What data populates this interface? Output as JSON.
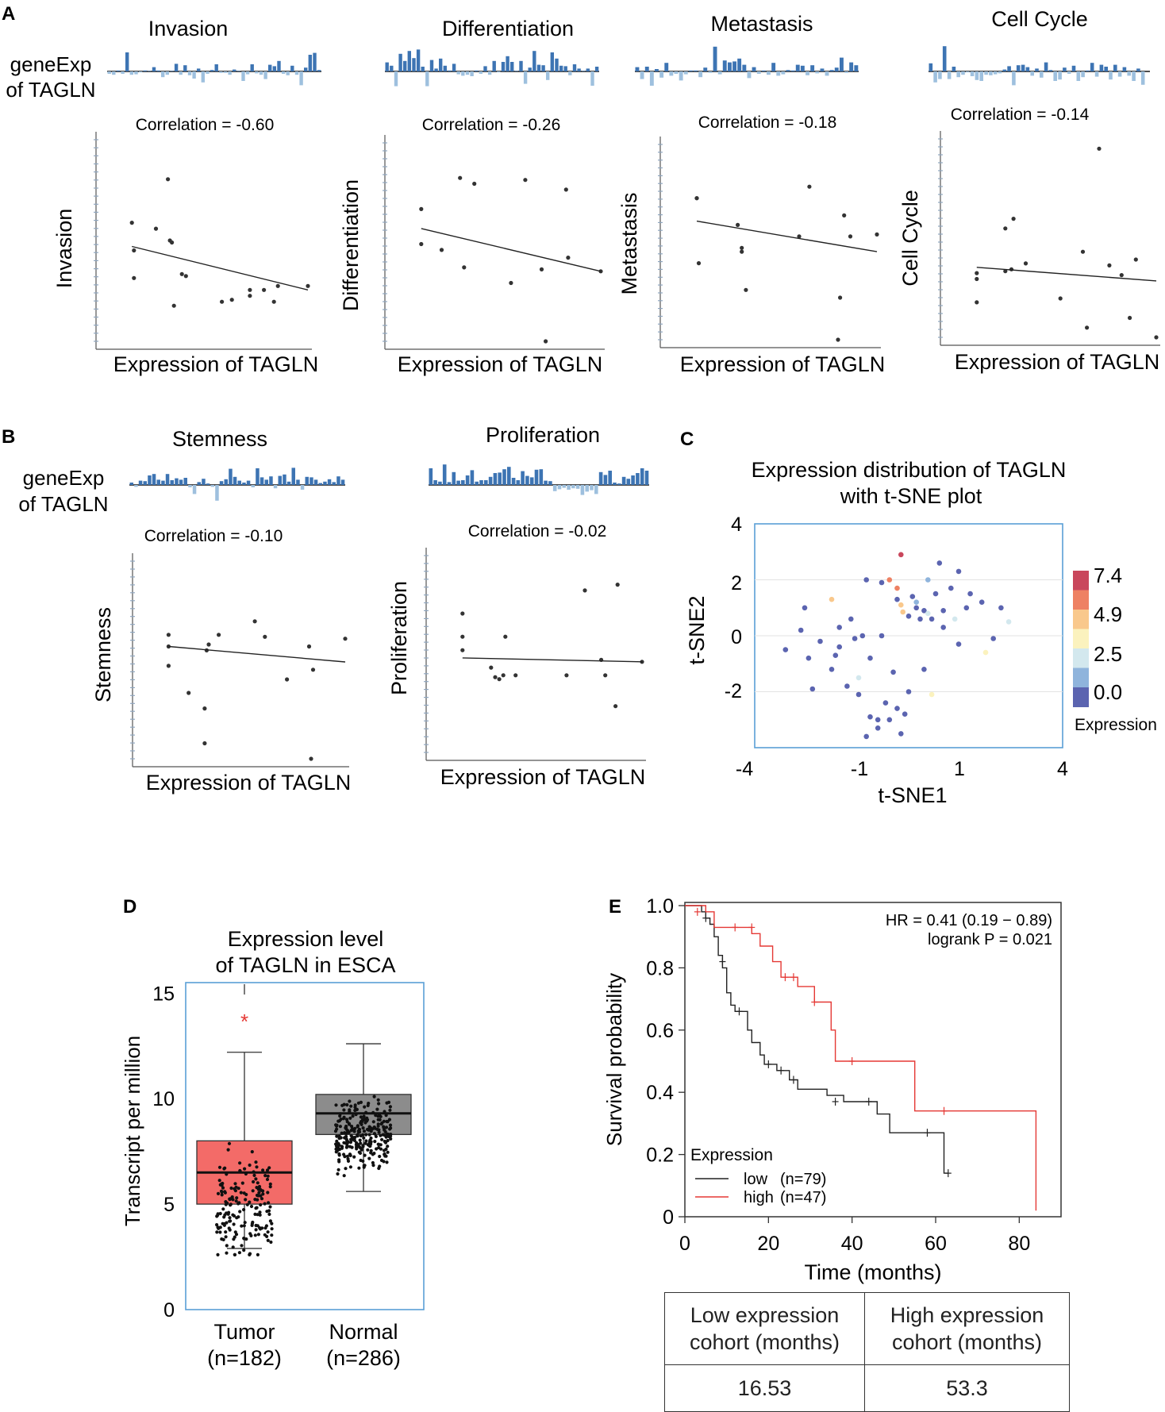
{
  "panel_labels": {
    "a": "A",
    "b": "B",
    "c": "C",
    "d": "D",
    "e": "E"
  },
  "common": {
    "gene_label_line1": "geneExp",
    "gene_label_line2": "of TAGLN",
    "xlabel": "Expression of TAGLN"
  },
  "chart_data": [
    {
      "panel": "A",
      "type": "scatter",
      "title": "Invasion",
      "ylabel": "Invasion",
      "xlabel": "Expression of TAGLN",
      "correlation": "Correlation = -0.60",
      "x": [
        0.12,
        0.13,
        0.13,
        0.24,
        0.3,
        0.31,
        0.32,
        0.33,
        0.37,
        0.39,
        0.57,
        0.62,
        0.71,
        0.71,
        0.78,
        0.83,
        0.85,
        1.0
      ],
      "y": [
        0.6,
        0.46,
        0.32,
        0.57,
        0.82,
        0.51,
        0.5,
        0.18,
        0.34,
        0.33,
        0.2,
        0.21,
        0.23,
        0.26,
        0.26,
        0.2,
        0.28,
        0.28
      ],
      "fit": [
        0.48,
        0.26
      ],
      "genebars": [
        -0.1,
        -0.14,
        0.04,
        -0.1,
        0.8,
        -0.14,
        -0.12,
        -0.04,
        0.04,
        0.02,
        0.18,
        0.04,
        -0.24,
        -0.14,
        0.02,
        0.32,
        -0.14,
        0.26,
        -0.16,
        -0.3,
        0.12,
        -0.46,
        -0.1,
        0.06,
        0.3,
        -0.06,
        -0.06,
        -0.14,
        0.08,
        0.02,
        -0.4,
        -0.12,
        0.3,
        -0.08,
        -0.14,
        -0.32,
        0.28,
        0.22,
        0.44,
        -0.1,
        -0.16,
        0.24,
        -0.14,
        -0.58,
        0.16,
        0.7,
        0.78,
        0.06
      ]
    },
    {
      "panel": "A",
      "type": "scatter",
      "title": "Differentiation",
      "ylabel": "Differentiation",
      "xlabel": "Expression of TAGLN",
      "correlation": "Correlation = -0.26",
      "x": [
        0.12,
        0.12,
        0.22,
        0.31,
        0.33,
        0.38,
        0.56,
        0.63,
        0.71,
        0.73,
        0.83,
        0.84,
        1.0
      ],
      "y": [
        0.68,
        0.5,
        0.47,
        0.84,
        0.38,
        0.81,
        0.3,
        0.83,
        0.37,
        0.0,
        0.78,
        0.43,
        0.36
      ],
      "fit": [
        0.58,
        0.36
      ],
      "genebars": [
        0.38,
        0.24,
        -0.62,
        0.74,
        0.44,
        0.86,
        0.56,
        0.92,
        0.2,
        -0.62,
        0.48,
        0.12,
        0.54,
        0.24,
        0.04,
        0.32,
        -0.12,
        -0.18,
        -0.14,
        -0.2,
        0.04,
        -0.1,
        0.22,
        -0.14,
        0.44,
        -0.04,
        0.4,
        0.64,
        0.4,
        0.02,
        0.44,
        -0.52,
        0.16,
        0.86,
        0.28,
        0.26,
        -0.36,
        0.8,
        0.54,
        0.24,
        0.22,
        -0.16,
        0.3,
        0.12,
        0.02,
        0.12,
        -0.6,
        0.2
      ]
    },
    {
      "panel": "A",
      "type": "scatter",
      "title": "Metastasis",
      "ylabel": "Metastasis",
      "xlabel": "Expression of TAGLN",
      "correlation": "Correlation = -0.18",
      "x": [
        0.12,
        0.12,
        0.13,
        0.32,
        0.34,
        0.34,
        0.36,
        0.62,
        0.67,
        0.82,
        0.81,
        0.84,
        0.87,
        1.0
      ],
      "y": [
        0.74,
        0.74,
        0.4,
        0.6,
        0.48,
        0.46,
        0.26,
        0.54,
        0.8,
        0.22,
        0.0,
        0.65,
        0.54,
        0.55
      ],
      "fit": [
        0.62,
        0.46
      ],
      "genebars": [
        0.18,
        -0.32,
        0.2,
        -0.6,
        0.1,
        -0.26,
        0.36,
        -0.18,
        -0.1,
        -0.38,
        -0.12,
        0.04,
        0.04,
        -0.24,
        0.16,
        -0.06,
        1.04,
        -0.12,
        0.46,
        0.38,
        0.42,
        0.54,
        0.28,
        -0.28,
        0.18,
        -0.1,
        0.04,
        -0.14,
        0.36,
        -0.18,
        -0.12,
        0.06,
        0.04,
        0.28,
        0.24,
        -0.16,
        0.26,
        -0.08,
        0.12,
        -0.18,
        0.06,
        0.16,
        0.58,
        -0.06,
        0.38,
        0.26
      ]
    },
    {
      "panel": "A",
      "type": "scatter",
      "title": "Cell Cycle",
      "ylabel": "Cell Cycle",
      "xlabel": "Expression of TAGLN",
      "correlation": "Correlation = -0.14",
      "x": [
        0.12,
        0.12,
        0.12,
        0.26,
        0.26,
        0.29,
        0.3,
        0.36,
        0.53,
        0.64,
        0.66,
        0.72,
        0.77,
        0.83,
        0.87,
        1.0,
        0.9
      ],
      "y": [
        0.18,
        0.3,
        0.33,
        0.56,
        0.34,
        0.35,
        0.61,
        0.38,
        0.2,
        0.44,
        0.05,
        0.97,
        0.37,
        0.32,
        0.1,
        0.0,
        0.4
      ],
      "fit": [
        0.36,
        0.29
      ],
      "genebars": [
        0.34,
        -0.46,
        -0.32,
        1.06,
        -0.32,
        0.2,
        -0.24,
        -0.14,
        -0.04,
        -0.2,
        -0.36,
        -0.4,
        -0.14,
        -0.16,
        -0.12,
        -0.08,
        0.08,
        0.22,
        -0.58,
        0.26,
        0.28,
        0.18,
        -0.18,
        0.12,
        -0.26,
        0.38,
        0.06,
        -0.4,
        -0.34,
        0.16,
        -0.1,
        0.24,
        -0.4,
        -0.24,
        0.04,
        0.36,
        -0.22,
        0.28,
        0.2,
        -0.34,
        0.28,
        -0.22,
        0.18,
        -0.18,
        -0.4,
        0.12,
        -0.56,
        0.0
      ]
    },
    {
      "panel": "B",
      "type": "scatter",
      "title": "Stemness",
      "ylabel": "Stemness",
      "xlabel": "Expression of TAGLN",
      "correlation": "Correlation = -0.10",
      "x": [
        0.12,
        0.12,
        0.12,
        0.22,
        0.3,
        0.3,
        0.31,
        0.32,
        0.37,
        0.55,
        0.6,
        0.71,
        0.82,
        0.83,
        0.84,
        1.0
      ],
      "y": [
        0.48,
        0.58,
        0.64,
        0.34,
        0.08,
        0.26,
        0.56,
        0.59,
        0.64,
        0.71,
        0.63,
        0.41,
        0.58,
        0.0,
        0.46,
        0.62
      ],
      "fit": [
        0.58,
        0.5
      ],
      "genebars": [
        0.1,
        -0.08,
        0.18,
        0.16,
        0.4,
        0.46,
        0.22,
        0.18,
        0.46,
        0.2,
        0.28,
        0.22,
        0.3,
        -0.1,
        -0.38,
        0.12,
        0.26,
        0.06,
        -0.08,
        -0.66,
        0.16,
        0.24,
        0.68,
        0.34,
        0.18,
        0.1,
        0.18,
        -0.1,
        0.7,
        0.32,
        0.22,
        0.36,
        -0.14,
        0.38,
        0.44,
        0.14,
        0.72,
        0.22,
        -0.2,
        0.34,
        0.32,
        0.22,
        0.08,
        0.14,
        0.24,
        0.12,
        0.36,
        0.22
      ]
    },
    {
      "panel": "B",
      "type": "scatter",
      "title": "Proliferation",
      "ylabel": "Proliferation",
      "xlabel": "Expression of TAGLN",
      "correlation": "Correlation = -0.02",
      "x": [
        0.12,
        0.12,
        0.12,
        0.26,
        0.28,
        0.3,
        0.32,
        0.33,
        0.38,
        0.63,
        0.72,
        0.8,
        0.82,
        0.87,
        1.0,
        0.88
      ],
      "y": [
        0.53,
        0.6,
        0.72,
        0.44,
        0.39,
        0.38,
        0.4,
        0.6,
        0.4,
        0.4,
        0.84,
        0.48,
        0.4,
        0.24,
        0.47,
        0.87
      ],
      "fit": [
        0.49,
        0.47
      ],
      "genebars": [
        0.7,
        0.2,
        0.14,
        0.86,
        0.12,
        0.54,
        0.18,
        0.2,
        0.4,
        0.62,
        0.14,
        0.2,
        0.2,
        0.34,
        0.5,
        0.52,
        0.66,
        0.76,
        0.3,
        0.2,
        0.58,
        0.38,
        0.32,
        0.64,
        0.66,
        0.18,
        0.16,
        -0.26,
        -0.18,
        -0.12,
        -0.2,
        -0.14,
        -0.16,
        -0.42,
        -0.28,
        -0.22,
        -0.38,
        0.54,
        0.42,
        0.6,
        0.1,
        0.06,
        0.34,
        0.26,
        0.4,
        0.5,
        0.7,
        0.6
      ]
    },
    {
      "panel": "C",
      "type": "scatter",
      "title": "Expression distribution of TAGLN",
      "title2": "with t-SNE plot",
      "xlabel": "t-SNE1",
      "ylabel": "t-SNE2",
      "xlim": [
        -4,
        4
      ],
      "ylim": [
        -4,
        4
      ],
      "xticks": [
        "-4",
        "-1",
        "1",
        "4"
      ],
      "yticks": [
        "4",
        "2",
        "0",
        "-2"
      ],
      "legend_title": "Expression",
      "legend_ticks": [
        "7.4",
        "4.9",
        "2.5",
        "0.0"
      ],
      "legend_colors": [
        "#c9475c",
        "#ee8163",
        "#f9c88c",
        "#fbf2be",
        "#d3e8ee",
        "#8fb4dc",
        "#5b64b0"
      ],
      "points": [
        [
          -0.2,
          2.9,
          7.4
        ],
        [
          -0.5,
          2.0,
          6.5
        ],
        [
          -2.0,
          1.3,
          3.8
        ],
        [
          -0.3,
          1.7,
          6.0
        ],
        [
          -0.2,
          1.1,
          4.2
        ],
        [
          -0.15,
          0.85,
          4.0
        ],
        [
          0.5,
          2.0,
          1.2
        ],
        [
          1.2,
          0.6,
          1.5
        ],
        [
          2.6,
          0.5,
          1.8
        ],
        [
          2.0,
          -0.6,
          3.0
        ],
        [
          0.6,
          -2.1,
          3.4
        ],
        [
          -1.3,
          -1.5,
          1.6
        ],
        [
          -1.1,
          2.0,
          0.0
        ],
        [
          -0.7,
          1.9,
          0.0
        ],
        [
          0.2,
          1.0,
          0.0
        ],
        [
          0.0,
          0.7,
          0.0
        ],
        [
          0.3,
          0.6,
          0.0
        ],
        [
          0.6,
          0.6,
          0.0
        ],
        [
          0.9,
          0.3,
          0.0
        ],
        [
          1.1,
          1.7,
          0.0
        ],
        [
          1.5,
          1.0,
          0.0
        ],
        [
          1.9,
          1.2,
          0.0
        ],
        [
          2.4,
          1.0,
          0.0
        ],
        [
          0.8,
          2.6,
          0.0
        ],
        [
          1.3,
          2.3,
          0.0
        ],
        [
          1.6,
          1.5,
          0.0
        ],
        [
          2.2,
          -0.1,
          0.0
        ],
        [
          1.3,
          -0.3,
          0.0
        ],
        [
          0.4,
          -1.2,
          0.0
        ],
        [
          0.0,
          -2.0,
          0.0
        ],
        [
          -0.3,
          -2.6,
          0.0
        ],
        [
          -0.6,
          -2.4,
          0.0
        ],
        [
          -0.8,
          -3.3,
          0.0
        ],
        [
          -0.5,
          -3.0,
          0.0
        ],
        [
          -0.2,
          -3.5,
          0.0
        ],
        [
          -1.0,
          -2.9,
          0.0
        ],
        [
          -1.3,
          -2.1,
          0.0
        ],
        [
          -1.6,
          -1.8,
          0.0
        ],
        [
          -2.0,
          -1.2,
          0.0
        ],
        [
          -2.6,
          -0.8,
          0.0
        ],
        [
          -2.3,
          -0.2,
          0.0
        ],
        [
          -1.8,
          0.3,
          0.0
        ],
        [
          -1.5,
          0.6,
          0.0
        ],
        [
          -1.2,
          0.0,
          0.0
        ],
        [
          -1.0,
          -0.8,
          0.0
        ],
        [
          -2.8,
          0.2,
          0.0
        ],
        [
          -3.2,
          -0.5,
          0.0
        ],
        [
          -2.5,
          -1.9,
          0.0
        ],
        [
          -1.9,
          -0.7,
          0.0
        ],
        [
          -0.7,
          0.0,
          0.0
        ],
        [
          -0.4,
          -1.3,
          0.0
        ],
        [
          -0.1,
          -2.8,
          0.0
        ],
        [
          -1.1,
          -3.6,
          0.0
        ],
        [
          -0.3,
          1.3,
          0.0
        ],
        [
          0.7,
          1.5,
          0.0
        ],
        [
          0.9,
          0.9,
          0.0
        ],
        [
          0.4,
          0.9,
          0.0
        ],
        [
          0.1,
          1.4,
          0.0
        ],
        [
          -2.7,
          1.0,
          0.0
        ],
        [
          -1.8,
          -0.4,
          0.0
        ],
        [
          0.2,
          1.2,
          1.0
        ],
        [
          0.5,
          0.8,
          1.6
        ],
        [
          -0.8,
          -3.0,
          0.0
        ],
        [
          -1.4,
          -0.1,
          0.0
        ]
      ]
    },
    {
      "panel": "D",
      "type": "box",
      "title": "Expression level",
      "title2": "of TAGLN in ESCA",
      "ylabel": "Transcript per million",
      "ylim": [
        0,
        15.5
      ],
      "yticks": [
        0,
        5,
        10,
        15
      ],
      "significance": "*",
      "groups": [
        {
          "name": "Tumor",
          "n": "(n=182)",
          "q1": 5.0,
          "median": 6.5,
          "q3": 8.0,
          "whisker_low": 2.9,
          "whisker_high": 12.2,
          "color": "#f36b68"
        },
        {
          "name": "Normal",
          "n": "(n=286)",
          "q1": 8.3,
          "median": 9.3,
          "q3": 10.2,
          "whisker_low": 5.6,
          "whisker_high": 12.6,
          "color": "#8c8c8c"
        }
      ]
    },
    {
      "panel": "E",
      "type": "line",
      "subtype": "kaplan-meier",
      "xlabel": "Time (months)",
      "ylabel": "Survival probability",
      "xlim": [
        0,
        90
      ],
      "ylim": [
        0,
        1
      ],
      "xticks": [
        0,
        20,
        40,
        60,
        80
      ],
      "yticks": [
        "0",
        "0.2",
        "0.4",
        "0.6",
        "0.8",
        "1.0"
      ],
      "stats_line1": "HR = 0.41 (0.19 − 0.89)",
      "stats_line2": "logrank P = 0.021",
      "legend_title": "Expression",
      "series": [
        {
          "name": "low",
          "n": "(n=79)",
          "color": "#222222",
          "steps": [
            [
              0,
              1.0
            ],
            [
              4,
              0.98
            ],
            [
              5,
              0.96
            ],
            [
              6,
              0.94
            ],
            [
              7,
              0.9
            ],
            [
              8,
              0.84
            ],
            [
              9,
              0.8
            ],
            [
              10,
              0.72
            ],
            [
              11,
              0.68
            ],
            [
              12,
              0.66
            ],
            [
              15,
              0.6
            ],
            [
              16,
              0.56
            ],
            [
              18,
              0.52
            ],
            [
              19,
              0.49
            ],
            [
              22,
              0.47
            ],
            [
              25,
              0.44
            ],
            [
              27,
              0.41
            ],
            [
              34,
              0.39
            ],
            [
              38,
              0.37
            ],
            [
              46,
              0.33
            ],
            [
              49,
              0.27
            ],
            [
              56,
              0.27
            ],
            [
              62,
              0.14
            ],
            [
              63,
              0.14
            ]
          ],
          "censor": [
            [
              5,
              0.96
            ],
            [
              9,
              0.82
            ],
            [
              13,
              0.66
            ],
            [
              20,
              0.49
            ],
            [
              23,
              0.47
            ],
            [
              26,
              0.44
            ],
            [
              36,
              0.37
            ],
            [
              44,
              0.37
            ],
            [
              58,
              0.27
            ],
            [
              63,
              0.14
            ]
          ]
        },
        {
          "name": "high",
          "n": "(n=47)",
          "color": "#e53935",
          "steps": [
            [
              0,
              1.0
            ],
            [
              5,
              0.98
            ],
            [
              7,
              0.93
            ],
            [
              16,
              0.91
            ],
            [
              18,
              0.87
            ],
            [
              21,
              0.82
            ],
            [
              23,
              0.77
            ],
            [
              27,
              0.74
            ],
            [
              31,
              0.69
            ],
            [
              35,
              0.6
            ],
            [
              36,
              0.5
            ],
            [
              55,
              0.34
            ],
            [
              84,
              0.02
            ]
          ],
          "censor": [
            [
              3,
              0.98
            ],
            [
              12,
              0.93
            ],
            [
              16,
              0.93
            ],
            [
              24,
              0.77
            ],
            [
              26,
              0.77
            ],
            [
              31,
              0.69
            ],
            [
              40,
              0.5
            ],
            [
              62,
              0.34
            ]
          ]
        }
      ]
    }
  ],
  "table": {
    "headers": [
      [
        "Low expression",
        "cohort (months)"
      ],
      [
        "High expression",
        "cohort (months)"
      ]
    ],
    "values": [
      "16.53",
      "53.3"
    ]
  }
}
